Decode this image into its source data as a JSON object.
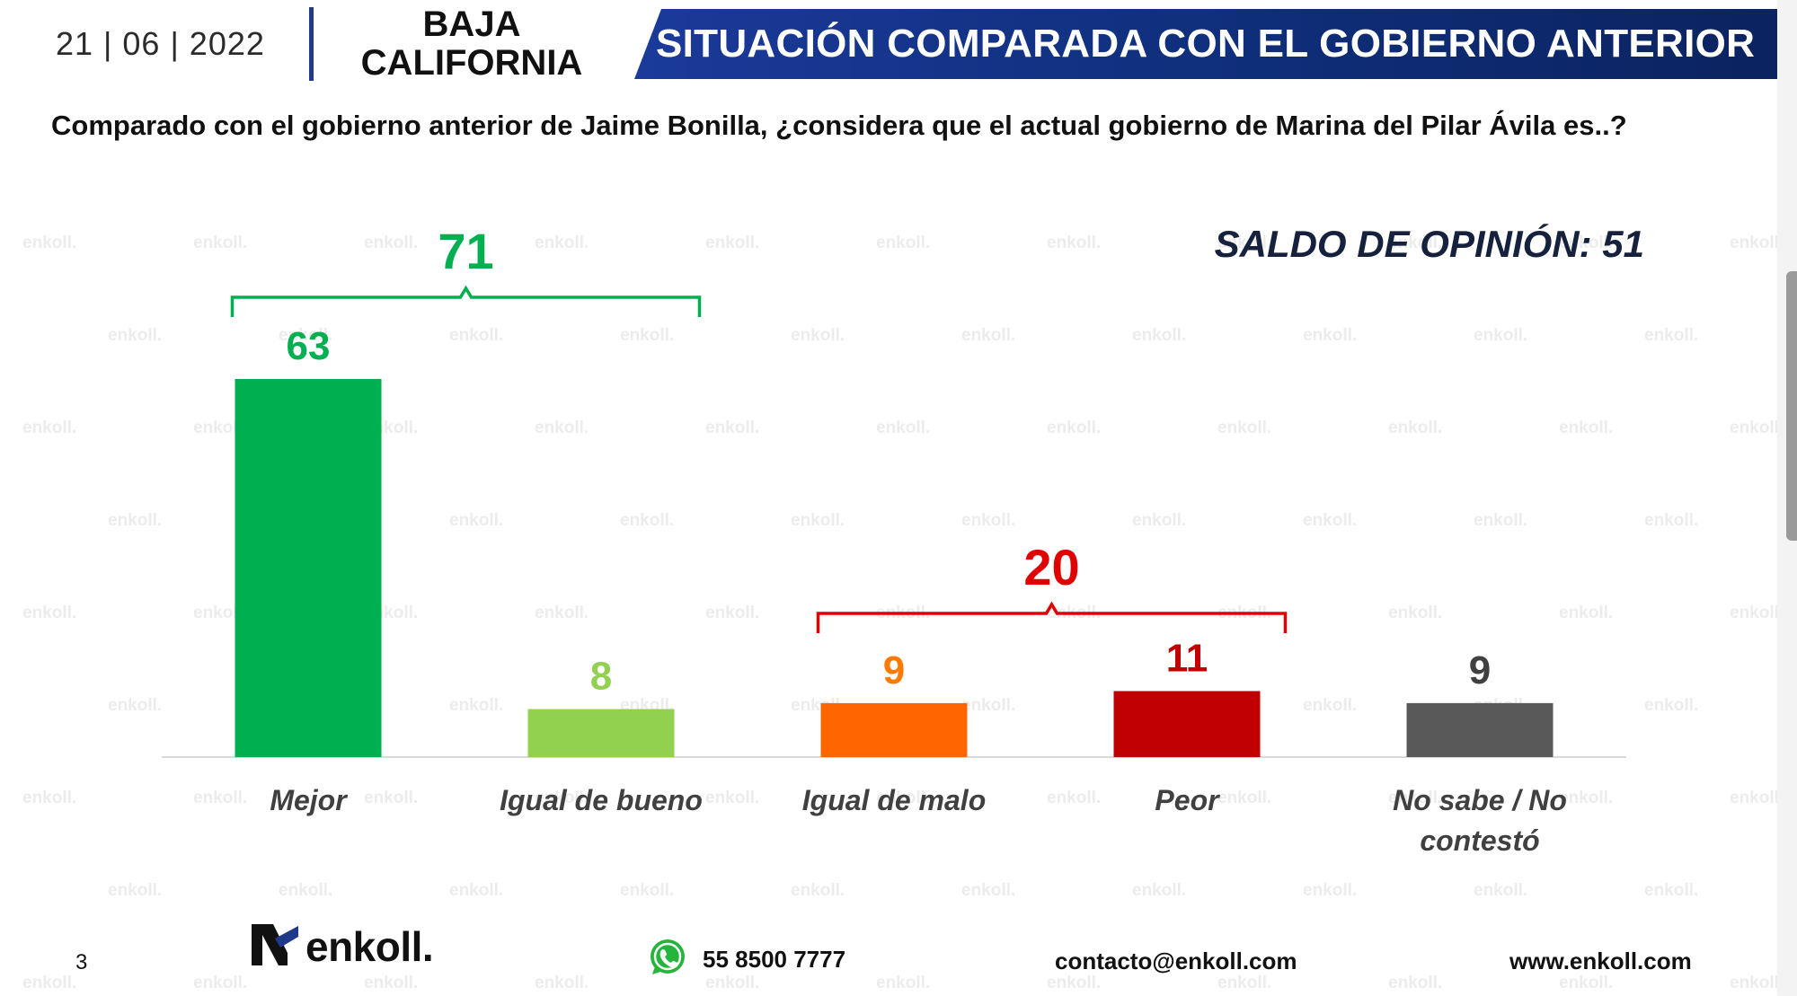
{
  "header": {
    "date": "21 | 06 | 2022",
    "state_line1": "BAJA",
    "state_line2": "CALIFORNIA",
    "banner_title": "SITUACIÓN COMPARADA CON EL GOBIERNO ANTERIOR"
  },
  "question": "Comparado con el gobierno anterior de Jaime Bonilla, ¿considera que el actual gobierno de Marina del Pilar Ávila es..?",
  "saldo": "SALDO DE OPINIÓN: 51",
  "chart_data": {
    "type": "bar",
    "title": "",
    "xlabel": "",
    "ylabel": "",
    "ylim": [
      0,
      63
    ],
    "categories": [
      "Mejor",
      "Igual de bueno",
      "Igual de malo",
      "Peor",
      "No sabe / No contestó"
    ],
    "values": [
      63,
      8,
      9,
      11,
      9
    ],
    "colors": [
      "#00b050",
      "#92d050",
      "#ff6600",
      "#c00000",
      "#595959"
    ],
    "value_label_colors": [
      "#00b050",
      "#92d050",
      "#ff7a00",
      "#c00000",
      "#404040"
    ],
    "groups": [
      {
        "label": "71",
        "from": 0,
        "to": 1,
        "color": "#00b050"
      },
      {
        "label": "20",
        "from": 2,
        "to": 3,
        "color": "#e00000"
      }
    ],
    "grid": false,
    "legend": "none"
  },
  "footer": {
    "page_number": "3",
    "logo_text": "enkoll.",
    "phone": "55 8500 7777",
    "email": "contacto@enkoll.com",
    "website": "www.enkoll.com"
  },
  "watermark_text": "enkoll.",
  "icons": {
    "logo": "enkoll-logo-icon",
    "phone": "whatsapp-icon"
  }
}
